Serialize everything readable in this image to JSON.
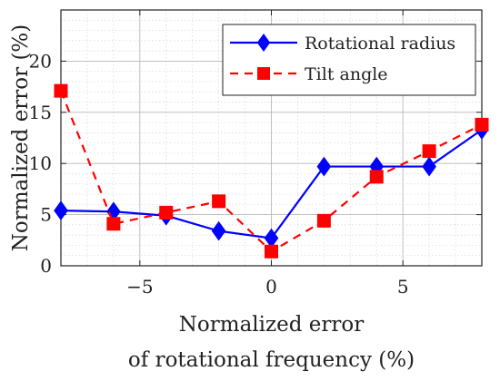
{
  "chart_data": {
    "type": "line",
    "xlabel_line1": "Normalized error",
    "xlabel_line2": "of rotational frequency (%)",
    "ylabel": "Normalized error (%)",
    "xlim": [
      -8,
      8
    ],
    "ylim": [
      0,
      25
    ],
    "x_ticks": [
      -5,
      0,
      5
    ],
    "x_tick_labels": [
      "−5",
      "0",
      "5"
    ],
    "y_ticks": [
      0,
      5,
      10,
      15,
      20
    ],
    "y_tick_labels": [
      "0",
      "5",
      "10",
      "15",
      "20"
    ],
    "grid": true,
    "legend_position": "top-right",
    "x": [
      -8,
      -6,
      -4,
      -2,
      0,
      2,
      4,
      6,
      8
    ],
    "series": [
      {
        "name": "Rotational radius",
        "color": "#0000ff",
        "marker": "diamond",
        "line": "solid",
        "values": [
          5.4,
          5.3,
          4.9,
          3.4,
          2.7,
          9.7,
          9.7,
          9.7,
          13.3
        ]
      },
      {
        "name": "Tilt angle",
        "color": "#ff0000",
        "marker": "square",
        "line": "dashed",
        "values": [
          17.1,
          4.1,
          5.2,
          6.3,
          1.4,
          4.4,
          8.7,
          11.2,
          13.8
        ]
      }
    ]
  }
}
